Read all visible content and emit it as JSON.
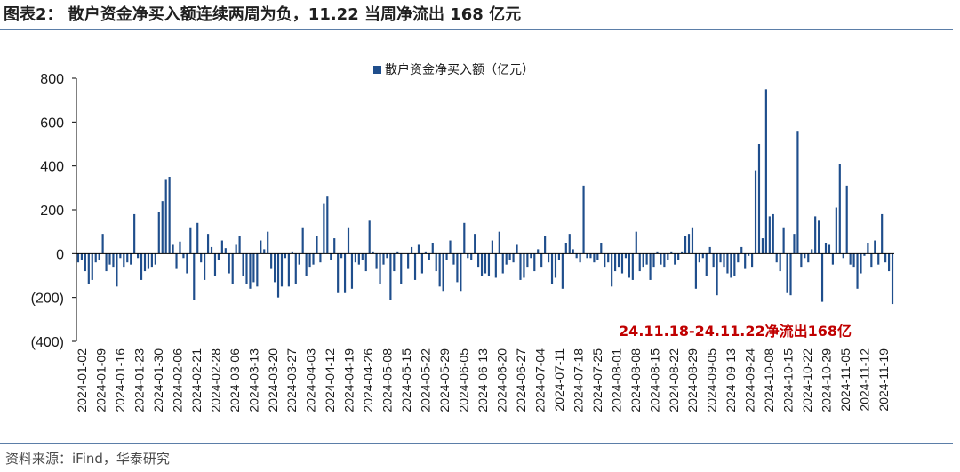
{
  "figure": {
    "title": "图表2：  散户资金净买入额连续两周为负，11.22 当周净流出 168 亿元",
    "source": "资料来源：iFind，华泰研究"
  },
  "colors": {
    "bar": "#1f4e8c",
    "annotation": "#c00000",
    "axis": "#000000",
    "rule": "#5b7ea8"
  },
  "chart_data": {
    "type": "bar",
    "legend": {
      "label": "散户资金净买入额（亿元）",
      "placement": "top-center"
    },
    "ylim": [
      -400,
      800
    ],
    "yticks": [
      800,
      600,
      400,
      200,
      0,
      -200,
      -400
    ],
    "ytick_labels": [
      "800",
      "600",
      "400",
      "200",
      "0",
      "(200)",
      "(400)"
    ],
    "xlabels": [
      "2024-01-02",
      "2024-01-09",
      "2024-01-16",
      "2024-01-23",
      "2024-01-30",
      "2024-02-06",
      "2024-02-21",
      "2024-02-28",
      "2024-03-06",
      "2024-03-13",
      "2024-03-20",
      "2024-03-27",
      "2024-04-03",
      "2024-04-12",
      "2024-04-19",
      "2024-04-26",
      "2024-05-08",
      "2024-05-15",
      "2024-05-22",
      "2024-05-29",
      "2024-06-05",
      "2024-06-13",
      "2024-06-20",
      "2024-06-27",
      "2024-07-04",
      "2024-07-11",
      "2024-07-18",
      "2024-07-25",
      "2024-08-01",
      "2024-08-08",
      "2024-08-15",
      "2024-08-22",
      "2024-08-29",
      "2024-09-05",
      "2024-09-13",
      "2024-09-24",
      "2024-10-08",
      "2024-10-15",
      "2024-10-22",
      "2024-10-29",
      "2024-11-05",
      "2024-11-12",
      "2024-11-19"
    ],
    "grid": false,
    "annotation": "24.11.18-24.11.22净流出168亿",
    "values": [
      -40,
      -30,
      -80,
      -140,
      -120,
      -40,
      -30,
      90,
      -80,
      -50,
      -60,
      -150,
      -20,
      -60,
      -40,
      -50,
      180,
      -20,
      -120,
      -80,
      -70,
      -60,
      -50,
      190,
      240,
      340,
      350,
      40,
      -70,
      55,
      -20,
      -90,
      120,
      -210,
      140,
      -40,
      -120,
      90,
      30,
      -100,
      -30,
      60,
      25,
      -90,
      -140,
      40,
      80,
      -100,
      -140,
      -160,
      -130,
      -150,
      60,
      20,
      100,
      -70,
      -130,
      -200,
      -150,
      -20,
      -150,
      10,
      -140,
      -50,
      120,
      -100,
      -60,
      -50,
      80,
      -40,
      230,
      260,
      -30,
      70,
      -180,
      -20,
      -180,
      120,
      -160,
      -40,
      -50,
      -30,
      -80,
      150,
      10,
      -70,
      -140,
      -50,
      -20,
      -210,
      -80,
      10,
      -140,
      0,
      -70,
      30,
      -120,
      40,
      -90,
      10,
      -30,
      50,
      -80,
      -150,
      -170,
      -30,
      60,
      -50,
      -130,
      -170,
      140,
      -20,
      -30,
      90,
      -60,
      -100,
      -90,
      -100,
      60,
      -110,
      100,
      -90,
      -50,
      -30,
      -40,
      40,
      -120,
      -110,
      -60,
      -20,
      -80,
      20,
      -60,
      80,
      -40,
      -140,
      -110,
      -30,
      -160,
      50,
      90,
      20,
      -20,
      -40,
      310,
      -20,
      -20,
      -40,
      -30,
      50,
      -60,
      -40,
      -150,
      -80,
      -60,
      -90,
      -20,
      -110,
      -120,
      100,
      -80,
      -60,
      -50,
      -120,
      -60,
      10,
      -50,
      -60,
      -30,
      10,
      -50,
      -30,
      10,
      80,
      90,
      120,
      -160,
      -40,
      -20,
      -100,
      30,
      -60,
      -190,
      -40,
      -60,
      -90,
      -110,
      -100,
      -40,
      30,
      -70,
      -10,
      -60,
      380,
      500,
      70,
      750,
      170,
      180,
      -40,
      -80,
      120,
      -180,
      -190,
      90,
      560,
      -60,
      -20,
      -40,
      20,
      170,
      150,
      -220,
      50,
      40,
      -50,
      210,
      410,
      -20,
      310,
      -50,
      -60,
      -160,
      -90,
      -10,
      50,
      -60,
      60,
      -50,
      180,
      -40,
      -80,
      -230
    ],
    "axis_range_note": ""
  }
}
